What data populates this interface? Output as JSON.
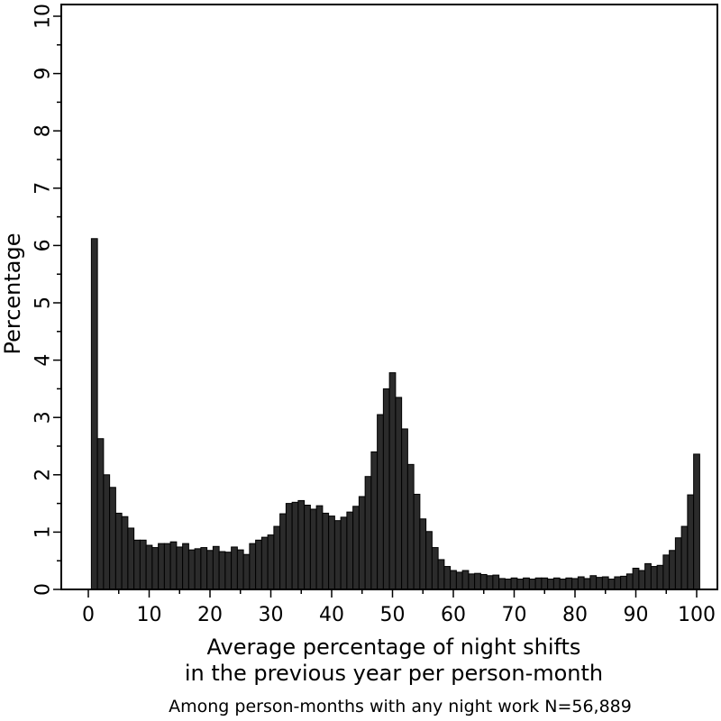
{
  "chart_data": {
    "type": "bar",
    "title": "",
    "xlabel": [
      "Average percentage of night shifts",
      "in the previous year per person-month"
    ],
    "ylabel": "Percentage",
    "note": "Among person-months with any night work N=56,889",
    "xlim": [
      0,
      100
    ],
    "ylim": [
      0,
      10
    ],
    "xticks": [
      0,
      10,
      20,
      30,
      40,
      50,
      60,
      70,
      80,
      90,
      100
    ],
    "yticks": [
      0,
      1,
      2,
      3,
      4,
      5,
      6,
      7,
      8,
      9,
      10
    ],
    "grid": false,
    "bar_color": "#2b2b2b",
    "x": [
      1,
      2,
      3,
      4,
      5,
      6,
      7,
      8,
      9,
      10,
      11,
      12,
      13,
      14,
      15,
      16,
      17,
      18,
      19,
      20,
      21,
      22,
      23,
      24,
      25,
      26,
      27,
      28,
      29,
      30,
      31,
      32,
      33,
      34,
      35,
      36,
      37,
      38,
      39,
      40,
      41,
      42,
      43,
      44,
      45,
      46,
      47,
      48,
      49,
      50,
      51,
      52,
      53,
      54,
      55,
      56,
      57,
      58,
      59,
      60,
      61,
      62,
      63,
      64,
      65,
      66,
      67,
      68,
      69,
      70,
      71,
      72,
      73,
      74,
      75,
      76,
      77,
      78,
      79,
      80,
      81,
      82,
      83,
      84,
      85,
      86,
      87,
      88,
      89,
      90,
      91,
      92,
      93,
      94,
      95,
      96,
      97,
      98,
      99,
      100
    ],
    "values": [
      6.12,
      2.63,
      2.0,
      1.78,
      1.33,
      1.27,
      1.07,
      0.86,
      0.86,
      0.77,
      0.73,
      0.8,
      0.8,
      0.83,
      0.74,
      0.8,
      0.69,
      0.71,
      0.73,
      0.68,
      0.75,
      0.66,
      0.65,
      0.74,
      0.69,
      0.61,
      0.8,
      0.86,
      0.91,
      0.95,
      1.1,
      1.32,
      1.5,
      1.52,
      1.55,
      1.47,
      1.4,
      1.46,
      1.33,
      1.28,
      1.2,
      1.26,
      1.35,
      1.45,
      1.62,
      1.97,
      2.4,
      3.05,
      3.5,
      3.78,
      3.35,
      2.8,
      2.18,
      1.66,
      1.23,
      1.01,
      0.73,
      0.52,
      0.4,
      0.33,
      0.3,
      0.33,
      0.27,
      0.28,
      0.26,
      0.24,
      0.25,
      0.19,
      0.18,
      0.2,
      0.18,
      0.2,
      0.18,
      0.2,
      0.2,
      0.18,
      0.2,
      0.18,
      0.2,
      0.19,
      0.22,
      0.19,
      0.24,
      0.21,
      0.22,
      0.18,
      0.22,
      0.23,
      0.27,
      0.37,
      0.33,
      0.45,
      0.4,
      0.42,
      0.6,
      0.68,
      0.9,
      1.1,
      1.65,
      2.36
    ]
  }
}
